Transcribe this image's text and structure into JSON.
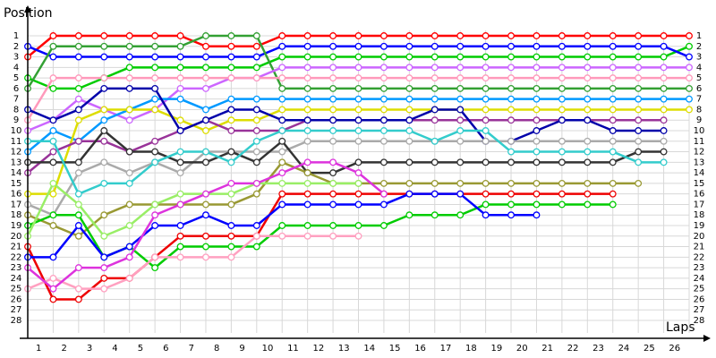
{
  "chart_data": {
    "type": "line",
    "title": "Position",
    "x_label": "Laps",
    "x": [
      0,
      1,
      2,
      3,
      4,
      5,
      6,
      7,
      8,
      9,
      10,
      11,
      12,
      13,
      14,
      15,
      16,
      17,
      18,
      19,
      20,
      21,
      22,
      23,
      24,
      25,
      26
    ],
    "xlim": [
      0,
      26
    ],
    "xticks": [
      1,
      2,
      3,
      4,
      5,
      6,
      7,
      8,
      9,
      10,
      11,
      12,
      13,
      14,
      15,
      16,
      17,
      18,
      19,
      20,
      21,
      22,
      23,
      24,
      25,
      26
    ],
    "ylim": [
      1,
      28
    ],
    "y_inverted": true,
    "yticks": [
      1,
      2,
      3,
      4,
      5,
      6,
      7,
      8,
      9,
      10,
      11,
      12,
      13,
      14,
      15,
      16,
      17,
      18,
      19,
      20,
      21,
      22,
      23,
      24,
      25,
      26,
      27,
      28
    ],
    "grid": true,
    "series": [
      {
        "color": "#ff0000",
        "values": [
          3,
          1,
          1,
          1,
          1,
          1,
          1,
          2,
          2,
          2,
          1,
          1,
          1,
          1,
          1,
          1,
          1,
          1,
          1,
          1,
          1,
          1,
          1,
          1,
          1,
          1,
          1
        ]
      },
      {
        "color": "#00cc00",
        "values": [
          5,
          6,
          6,
          5,
          4,
          4,
          4,
          4,
          4,
          4,
          3,
          3,
          3,
          3,
          3,
          3,
          3,
          3,
          3,
          3,
          3,
          3,
          3,
          3,
          3,
          3,
          2
        ]
      },
      {
        "color": "#0000ff",
        "values": [
          2,
          3,
          3,
          3,
          3,
          3,
          3,
          3,
          3,
          3,
          2,
          2,
          2,
          2,
          2,
          2,
          2,
          2,
          2,
          2,
          2,
          2,
          2,
          2,
          2,
          2,
          3
        ]
      },
      {
        "color": "#33a033",
        "values": [
          6,
          2,
          2,
          2,
          2,
          2,
          2,
          1,
          1,
          1,
          6,
          6,
          6,
          6,
          6,
          6,
          6,
          6,
          6,
          6,
          6,
          6,
          6,
          6,
          6,
          6,
          6
        ]
      },
      {
        "color": "#cc66ff",
        "values": [
          10,
          9,
          7,
          8,
          9,
          8,
          6,
          6,
          5,
          5,
          4,
          4,
          4,
          4,
          4,
          4,
          4,
          4,
          4,
          4,
          4,
          4,
          4,
          4,
          4,
          4,
          4
        ]
      },
      {
        "color": "#ff99bb",
        "values": [
          9,
          5,
          5,
          5,
          5,
          5,
          5,
          5,
          5,
          5,
          5,
          5,
          5,
          5,
          5,
          5,
          5,
          5,
          5,
          5,
          5,
          5,
          5,
          5,
          5,
          5,
          5
        ]
      },
      {
        "color": "#0099ff",
        "values": [
          12,
          10,
          11,
          9,
          8,
          7,
          7,
          8,
          7,
          7,
          7,
          7,
          7,
          7,
          7,
          7,
          7,
          7,
          7,
          7,
          7,
          7,
          7,
          7,
          7,
          7,
          7
        ]
      },
      {
        "color": "#dddd00",
        "values": [
          16,
          16,
          9,
          8,
          8,
          8,
          9,
          10,
          9,
          9,
          8,
          8,
          8,
          8,
          8,
          8,
          8,
          8,
          8,
          8,
          8,
          8,
          8,
          8,
          8,
          8,
          8
        ]
      },
      {
        "color": "#993399",
        "values": [
          14,
          12,
          11,
          11,
          12,
          11,
          10,
          9,
          10,
          10,
          10,
          9,
          9,
          9,
          9,
          9,
          9,
          9,
          9,
          9,
          9,
          9,
          9,
          9,
          9,
          9,
          null
        ]
      },
      {
        "color": "#0000aa",
        "values": [
          8,
          9,
          8,
          6,
          6,
          6,
          10,
          9,
          8,
          8,
          9,
          9,
          9,
          9,
          9,
          9,
          8,
          8,
          11,
          11,
          10,
          9,
          9,
          10,
          10,
          10,
          null
        ]
      },
      {
        "color": "#aaaaaa",
        "values": [
          17,
          18,
          14,
          13,
          14,
          13,
          14,
          12,
          12,
          12,
          12,
          11,
          11,
          11,
          11,
          11,
          11,
          11,
          11,
          11,
          11,
          11,
          11,
          11,
          11,
          11,
          null
        ]
      },
      {
        "color": "#333333",
        "values": [
          13,
          13,
          13,
          10,
          12,
          12,
          13,
          13,
          12,
          13,
          11,
          14,
          14,
          13,
          13,
          13,
          13,
          13,
          13,
          13,
          13,
          13,
          13,
          13,
          12,
          12,
          null
        ]
      },
      {
        "color": "#33cccc",
        "values": [
          11,
          11,
          16,
          15,
          15,
          13,
          12,
          12,
          13,
          11,
          10,
          10,
          10,
          10,
          10,
          10,
          11,
          10,
          10,
          12,
          12,
          12,
          12,
          12,
          13,
          13,
          null
        ]
      },
      {
        "color": "#999933",
        "values": [
          18,
          19,
          20,
          18,
          17,
          17,
          17,
          17,
          17,
          16,
          13,
          14,
          15,
          15,
          15,
          15,
          15,
          15,
          15,
          15,
          15,
          15,
          15,
          15,
          15,
          null,
          null
        ]
      },
      {
        "color": "#ee0000",
        "values": [
          21,
          26,
          26,
          24,
          24,
          22,
          20,
          20,
          20,
          20,
          16,
          16,
          16,
          16,
          16,
          16,
          16,
          16,
          16,
          16,
          16,
          16,
          16,
          16,
          null,
          null,
          null
        ]
      },
      {
        "color": "#00cc00",
        "values": [
          19,
          18,
          18,
          22,
          21,
          23,
          21,
          21,
          21,
          21,
          19,
          19,
          19,
          19,
          19,
          18,
          18,
          18,
          17,
          17,
          17,
          17,
          17,
          17,
          null,
          null,
          null
        ]
      },
      {
        "color": "#0000ff",
        "values": [
          22,
          22,
          19,
          22,
          21,
          19,
          19,
          18,
          19,
          19,
          17,
          17,
          17,
          17,
          17,
          16,
          16,
          16,
          18,
          18,
          18,
          null,
          null,
          null,
          null,
          null,
          null
        ]
      },
      {
        "color": "#99ee66",
        "values": [
          20,
          15,
          17,
          20,
          19,
          17,
          16,
          16,
          16,
          15,
          15,
          15,
          15,
          15,
          null,
          null,
          null,
          null,
          null,
          null,
          null,
          null,
          null,
          null,
          null,
          null,
          null
        ]
      },
      {
        "color": "#ffa0c0",
        "values": [
          25,
          24,
          25,
          25,
          24,
          22,
          22,
          22,
          22,
          20,
          20,
          20,
          20,
          20,
          null,
          null,
          null,
          null,
          null,
          null,
          null,
          null,
          null,
          null,
          null,
          null,
          null
        ]
      },
      {
        "color": "#dd33dd",
        "values": [
          23,
          25,
          23,
          23,
          22,
          18,
          17,
          16,
          15,
          15,
          14,
          13,
          13,
          14,
          16,
          null,
          null,
          null,
          null,
          null,
          null,
          null,
          null,
          null,
          null,
          null,
          null
        ]
      }
    ]
  }
}
